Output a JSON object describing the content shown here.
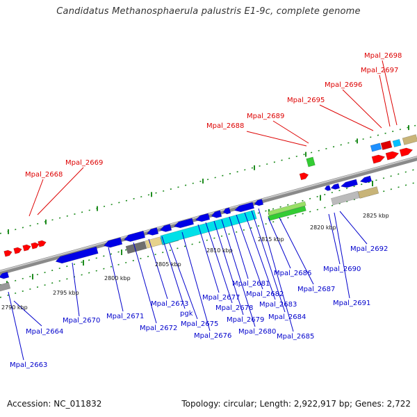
{
  "title": "Candidatus Methanosphaerula palustris E1-9c, complete genome",
  "footer": {
    "accession": "Accession: NC_011832",
    "summary": "Topology: circular; Length: 2,922,917 bp; Genes: 2,722"
  },
  "colors": {
    "forward_label": "#dd0000",
    "reverse_label": "#0000cc",
    "backbone": "#8c8c8c",
    "tick": "#1e8c1e",
    "forward_gene": "#ff0000",
    "reverse_gene": "#0000e6",
    "highlight_gene": "#00e0e8",
    "rna_gene": "#33cc33"
  },
  "scale_labels": [
    "2790 kbp",
    "2795 kbp",
    "2800 kbp",
    "2805 kbp",
    "2810 kbp",
    "2815 kbp",
    "2820 kbp",
    "2825 kbp"
  ],
  "forward_labels": [
    "Mpal_2668",
    "Mpal_2669",
    "Mpal_2688",
    "Mpal_2689",
    "Mpal_2695",
    "Mpal_2696",
    "Mpal_2697",
    "Mpal_2698"
  ],
  "reverse_labels": [
    "Mpal_2663",
    "Mpal_2664",
    "Mpal_2670",
    "Mpal_2671",
    "Mpal_2672",
    "Mpal_2673",
    "pgk",
    "Mpal_2675",
    "Mpal_2676",
    "Mpal_2677",
    "Mpal_2678",
    "Mpal_2679",
    "Mpal_2680",
    "Mpal_2681",
    "Mpal_2682",
    "Mpal_2683",
    "Mpal_2684",
    "Mpal_2685",
    "Mpal_2686",
    "Mpal_2687",
    "Mpal_2690",
    "Mpal_2691",
    "Mpal_2692"
  ]
}
